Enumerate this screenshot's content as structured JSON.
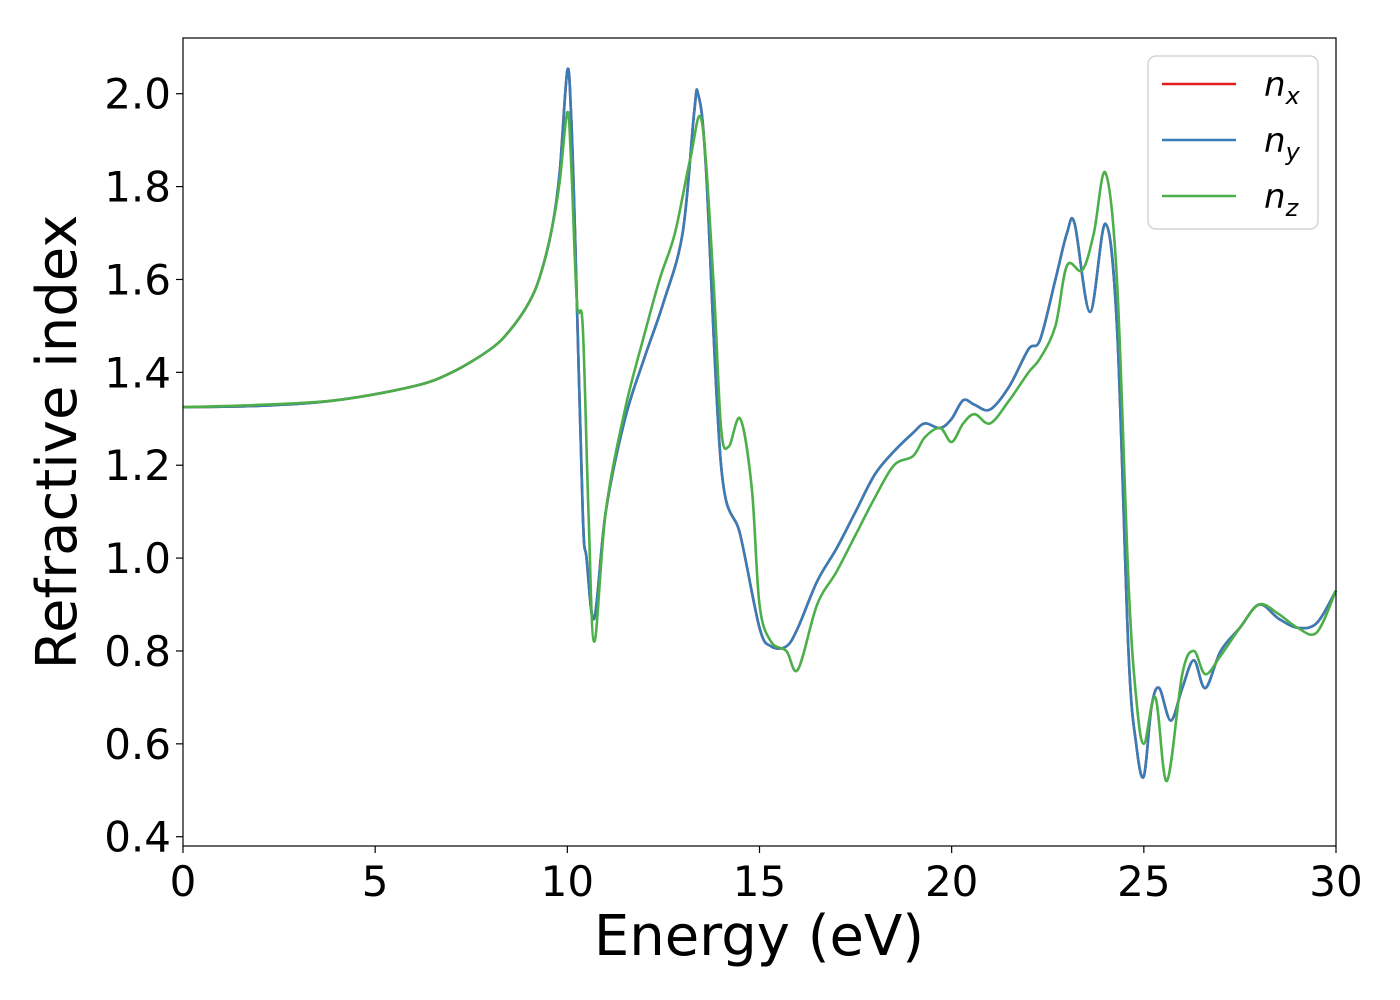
{
  "chart_data": {
    "type": "line",
    "xlabel": "Energy (eV)",
    "ylabel": "Refractive index",
    "xlim": [
      0,
      30
    ],
    "ylim": [
      0.38,
      2.12
    ],
    "xticks": [
      "0",
      "5",
      "10",
      "15",
      "20",
      "25",
      "30"
    ],
    "yticks": [
      "0.4",
      "0.6",
      "0.8",
      "1.0",
      "1.2",
      "1.4",
      "1.6",
      "1.8",
      "2.0"
    ],
    "grid": false,
    "legend_position": "top-right",
    "series": [
      {
        "name": "n_x",
        "label_base": "n",
        "label_sub": "x",
        "color": "#e41a1c",
        "x": [
          0,
          2,
          4,
          6,
          7,
          8,
          8.5,
          9,
          9.3,
          9.6,
          9.8,
          10.0,
          10.1,
          10.2,
          10.4,
          10.5,
          10.7,
          11.0,
          11.5,
          12.0,
          12.5,
          13.0,
          13.3,
          13.4,
          13.6,
          14.0,
          14.5,
          15.0,
          15.3,
          15.7,
          16.0,
          16.5,
          17.0,
          17.5,
          18.0,
          18.5,
          19.0,
          19.3,
          19.7,
          20.0,
          20.3,
          20.6,
          21.0,
          21.5,
          22.0,
          22.3,
          22.7,
          23.0,
          23.2,
          23.6,
          24.0,
          24.3,
          24.6,
          24.8,
          25.0,
          25.2,
          25.4,
          25.7,
          26.0,
          26.3,
          26.6,
          27.0,
          27.5,
          28.0,
          28.5,
          29.0,
          29.5,
          30.0
        ],
        "y": [
          1.325,
          1.328,
          1.34,
          1.37,
          1.4,
          1.45,
          1.49,
          1.55,
          1.61,
          1.71,
          1.83,
          2.05,
          1.95,
          1.7,
          1.1,
          1.0,
          0.87,
          1.1,
          1.3,
          1.43,
          1.55,
          1.7,
          1.96,
          2.0,
          1.85,
          1.2,
          1.05,
          0.85,
          0.81,
          0.81,
          0.85,
          0.95,
          1.02,
          1.1,
          1.18,
          1.23,
          1.27,
          1.29,
          1.28,
          1.3,
          1.34,
          1.33,
          1.32,
          1.37,
          1.45,
          1.47,
          1.6,
          1.7,
          1.72,
          1.53,
          1.72,
          1.5,
          0.8,
          0.6,
          0.53,
          0.68,
          0.72,
          0.65,
          0.72,
          0.78,
          0.72,
          0.8,
          0.85,
          0.9,
          0.87,
          0.85,
          0.86,
          0.93
        ]
      },
      {
        "name": "n_y",
        "label_base": "n",
        "label_sub": "y",
        "color": "#377eb8",
        "x": [
          0,
          2,
          4,
          6,
          7,
          8,
          8.5,
          9,
          9.3,
          9.6,
          9.8,
          10.0,
          10.1,
          10.2,
          10.4,
          10.5,
          10.7,
          11.0,
          11.5,
          12.0,
          12.5,
          13.0,
          13.3,
          13.4,
          13.6,
          14.0,
          14.5,
          15.0,
          15.3,
          15.7,
          16.0,
          16.5,
          17.0,
          17.5,
          18.0,
          18.5,
          19.0,
          19.3,
          19.7,
          20.0,
          20.3,
          20.6,
          21.0,
          21.5,
          22.0,
          22.3,
          22.7,
          23.0,
          23.2,
          23.6,
          24.0,
          24.3,
          24.6,
          24.8,
          25.0,
          25.2,
          25.4,
          25.7,
          26.0,
          26.3,
          26.6,
          27.0,
          27.5,
          28.0,
          28.5,
          29.0,
          29.5,
          30.0
        ],
        "y": [
          1.325,
          1.328,
          1.34,
          1.37,
          1.4,
          1.45,
          1.49,
          1.55,
          1.61,
          1.71,
          1.83,
          2.05,
          1.95,
          1.7,
          1.1,
          1.0,
          0.87,
          1.1,
          1.3,
          1.43,
          1.55,
          1.7,
          1.96,
          2.0,
          1.85,
          1.2,
          1.05,
          0.85,
          0.81,
          0.81,
          0.85,
          0.95,
          1.02,
          1.1,
          1.18,
          1.23,
          1.27,
          1.29,
          1.28,
          1.3,
          1.34,
          1.33,
          1.32,
          1.37,
          1.45,
          1.47,
          1.6,
          1.7,
          1.72,
          1.53,
          1.72,
          1.5,
          0.8,
          0.6,
          0.53,
          0.68,
          0.72,
          0.65,
          0.72,
          0.78,
          0.72,
          0.8,
          0.85,
          0.9,
          0.87,
          0.85,
          0.86,
          0.93
        ]
      },
      {
        "name": "n_z",
        "label_base": "n",
        "label_sub": "z",
        "color": "#4daf4a",
        "x": [
          0,
          2,
          4,
          6,
          7,
          8,
          8.5,
          9,
          9.3,
          9.6,
          9.8,
          10.0,
          10.1,
          10.25,
          10.4,
          10.55,
          10.7,
          11.0,
          11.5,
          12.0,
          12.4,
          12.8,
          13.2,
          13.5,
          13.8,
          14.0,
          14.2,
          14.5,
          14.8,
          15.0,
          15.3,
          15.7,
          16.0,
          16.5,
          17.0,
          17.5,
          18.0,
          18.5,
          19.0,
          19.3,
          19.7,
          20.0,
          20.3,
          20.6,
          21.0,
          21.5,
          22.0,
          22.3,
          22.7,
          23.0,
          23.4,
          23.7,
          24.0,
          24.3,
          24.6,
          24.8,
          25.0,
          25.3,
          25.6,
          26.0,
          26.3,
          26.6,
          27.0,
          27.5,
          28.0,
          28.5,
          29.0,
          29.5,
          30.0
        ],
        "y": [
          1.325,
          1.33,
          1.34,
          1.37,
          1.4,
          1.45,
          1.49,
          1.55,
          1.61,
          1.71,
          1.81,
          1.96,
          1.85,
          1.55,
          1.5,
          1.1,
          0.82,
          1.1,
          1.32,
          1.48,
          1.6,
          1.7,
          1.86,
          1.94,
          1.6,
          1.28,
          1.24,
          1.3,
          1.15,
          0.9,
          0.82,
          0.8,
          0.76,
          0.9,
          0.97,
          1.05,
          1.13,
          1.2,
          1.22,
          1.26,
          1.28,
          1.25,
          1.29,
          1.31,
          1.29,
          1.34,
          1.4,
          1.43,
          1.5,
          1.63,
          1.62,
          1.7,
          1.83,
          1.6,
          0.95,
          0.7,
          0.6,
          0.7,
          0.52,
          0.75,
          0.8,
          0.75,
          0.79,
          0.85,
          0.9,
          0.88,
          0.85,
          0.84,
          0.93
        ]
      }
    ]
  }
}
